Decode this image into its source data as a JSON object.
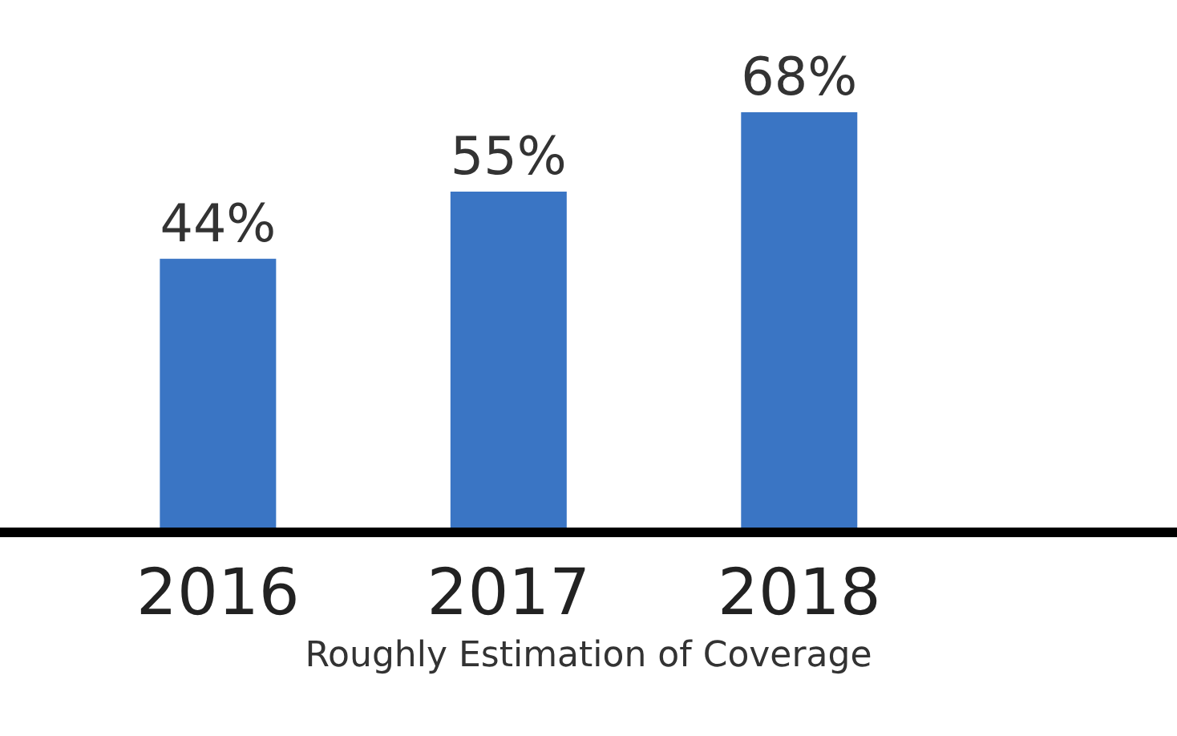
{
  "chart_data": {
    "type": "bar",
    "xlabel": "Roughly Estimation of Coverage",
    "categories": [
      "2016",
      "2017",
      "2018"
    ],
    "values": [
      44,
      55,
      68
    ],
    "value_labels": [
      "44%",
      "55%",
      "68%"
    ],
    "color": "#3a75c4",
    "tick_labels": "x"
  }
}
